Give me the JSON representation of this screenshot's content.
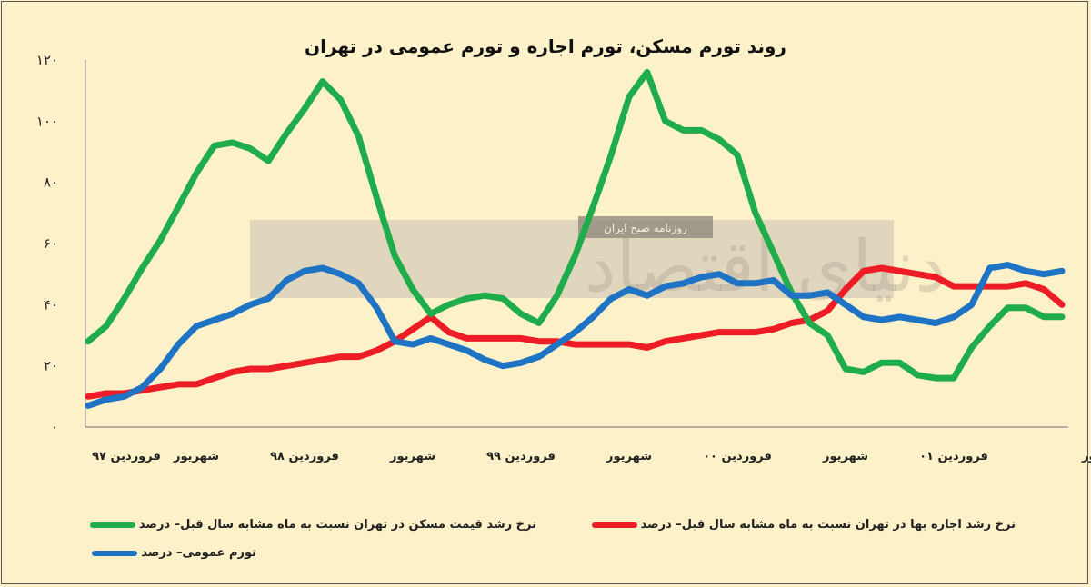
{
  "chart_data": {
    "type": "line",
    "title": "روند تورم مسکن، تورم اجاره و تورم عمومی در تهران",
    "y_ticks": [
      0,
      20,
      40,
      60,
      80,
      100,
      120
    ],
    "y_tick_labels": [
      "۰",
      "۲۰",
      "۴۰",
      "۶۰",
      "۸۰",
      "۱۰۰",
      "۱۲۰"
    ],
    "ylim": [
      0,
      120
    ],
    "x_ticks": [
      {
        "index": 0,
        "label": "فروردین ۹۷"
      },
      {
        "index": 6,
        "label": "شهریور"
      },
      {
        "index": 12,
        "label": "فروردین ۹۸"
      },
      {
        "index": 18,
        "label": "شهریور"
      },
      {
        "index": 24,
        "label": "فروردین ۹۹"
      },
      {
        "index": 30,
        "label": "شهریور"
      },
      {
        "index": 36,
        "label": "فروردین ۰۰"
      },
      {
        "index": 42,
        "label": "شهریور"
      },
      {
        "index": 48,
        "label": "فروردین ۰۱"
      },
      {
        "index": 54,
        "label": "شهریور"
      }
    ],
    "n_points": 55,
    "grid": false,
    "legend_position": "bottom",
    "series": [
      {
        "name": "نرخ رشد قیمت مسکن در تهران نسبت به ماه مشابه سال قبل– درصد",
        "color": "#1fac4b",
        "values": [
          28,
          33,
          42,
          52,
          61,
          72,
          83,
          92,
          93,
          91,
          87,
          96,
          104,
          113,
          107,
          95,
          75,
          56,
          45,
          37,
          40,
          42,
          43,
          42,
          37,
          34,
          43,
          56,
          72,
          89,
          108,
          116,
          100,
          97,
          97,
          94,
          89,
          70,
          57,
          44,
          34,
          30,
          19,
          18,
          21,
          21,
          17,
          16,
          16,
          26,
          33,
          39,
          39,
          36,
          36
        ]
      },
      {
        "name": "نرخ رشد اجاره بها در تهران نسبت به ماه مشابه سال قبل– درصد",
        "color": "#ee1c24",
        "values": [
          10,
          11,
          11,
          12,
          13,
          14,
          14,
          16,
          18,
          19,
          19,
          20,
          21,
          22,
          23,
          23,
          25,
          28,
          32,
          36,
          31,
          29,
          29,
          29,
          29,
          28,
          28,
          27,
          27,
          27,
          27,
          26,
          28,
          29,
          30,
          31,
          31,
          31,
          32,
          34,
          35,
          38,
          45,
          51,
          52,
          51,
          50,
          49,
          46,
          46,
          46,
          46,
          47,
          45,
          40
        ]
      },
      {
        "name": "تورم عمومی– درصد",
        "color": "#1e73c4",
        "values": [
          7,
          9,
          10,
          13,
          19,
          27,
          33,
          35,
          37,
          40,
          42,
          48,
          51,
          52,
          50,
          47,
          39,
          28,
          27,
          29,
          27,
          25,
          22,
          20,
          21,
          23,
          27,
          31,
          36,
          42,
          45,
          43,
          46,
          47,
          49,
          50,
          47,
          47,
          48,
          43,
          43,
          44,
          40,
          36,
          35,
          36,
          35,
          34,
          36,
          40,
          52,
          53,
          51,
          50,
          51
        ]
      }
    ]
  },
  "watermark": {
    "large_text": "دنیای اقتصاد",
    "small_text": "روزنامه صبح ایران"
  }
}
